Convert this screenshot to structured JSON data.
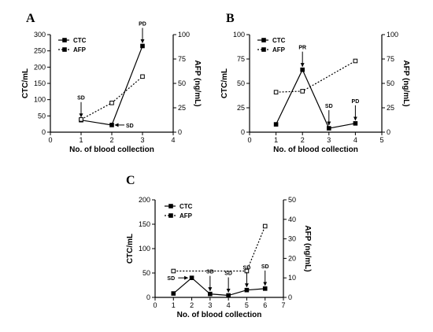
{
  "chart_data": [
    {
      "panel": "A",
      "type": "line",
      "xlabel": "No. of blood collection",
      "ylabel": "CTC/mL",
      "y2label": "AFP (ng/mL)",
      "xlim": [
        0,
        4
      ],
      "ylim": [
        0,
        300
      ],
      "y2lim": [
        0,
        100
      ],
      "xticks": [
        "0",
        "1",
        "2",
        "3",
        "4"
      ],
      "yticks": [
        "0",
        "50",
        "100",
        "150",
        "200",
        "250",
        "300"
      ],
      "y2ticks": [
        "0",
        "25",
        "50",
        "75",
        "100"
      ],
      "legend": {
        "position": "top-left",
        "entries": [
          "CTC",
          "AFP"
        ]
      },
      "series": [
        {
          "name": "CTC",
          "axis": "left",
          "style": "solid",
          "marker": "square",
          "x": [
            1,
            2,
            3
          ],
          "y": [
            37,
            22,
            265
          ]
        },
        {
          "name": "AFP",
          "axis": "right",
          "style": "dotted",
          "marker": "square-open",
          "x": [
            1,
            2,
            3
          ],
          "y": [
            13,
            30,
            57
          ]
        }
      ],
      "annotations": [
        {
          "text": "SD",
          "x": 1,
          "y": 37,
          "arrow": "down"
        },
        {
          "text": "SD",
          "x": 2,
          "y": 22,
          "arrow": "left"
        },
        {
          "text": "PD",
          "x": 3,
          "y": 265,
          "arrow": "down"
        }
      ]
    },
    {
      "panel": "B",
      "type": "line",
      "xlabel": "No. of blood collection",
      "ylabel": "CTC/mL",
      "y2label": "AFP (ng/mL)",
      "xlim": [
        0,
        5
      ],
      "ylim": [
        0,
        100
      ],
      "y2lim": [
        0,
        100
      ],
      "xticks": [
        "0",
        "1",
        "2",
        "3",
        "4",
        "5"
      ],
      "yticks": [
        "0",
        "25",
        "50",
        "75",
        "100"
      ],
      "y2ticks": [
        "0",
        "25",
        "50",
        "75",
        "100"
      ],
      "legend": {
        "position": "top-left",
        "entries": [
          "CTC",
          "AFP"
        ]
      },
      "series": [
        {
          "name": "CTC",
          "axis": "left",
          "style": "solid",
          "marker": "square",
          "x": [
            1,
            2,
            3,
            4
          ],
          "y": [
            8,
            64,
            4,
            9
          ]
        },
        {
          "name": "AFP",
          "axis": "right",
          "style": "dotted",
          "marker": "square-open",
          "x": [
            1,
            2,
            3,
            4
          ],
          "y": [
            41,
            42,
            null,
            73
          ]
        }
      ],
      "annotations": [
        {
          "text": "PR",
          "x": 2,
          "y": 64,
          "arrow": "down"
        },
        {
          "text": "SD",
          "x": 3,
          "y": 4,
          "arrow": "down"
        },
        {
          "text": "PD",
          "x": 4,
          "y": 9,
          "arrow": "down"
        }
      ]
    },
    {
      "panel": "C",
      "type": "line",
      "xlabel": "No. of blood collection",
      "ylabel": "CTC/mL",
      "y2label": "AFP (ng/mL)",
      "xlim": [
        0,
        7
      ],
      "ylim": [
        0,
        200
      ],
      "y2lim": [
        0,
        50
      ],
      "xticks": [
        "0",
        "1",
        "2",
        "3",
        "4",
        "5",
        "6",
        "7"
      ],
      "yticks": [
        "0",
        "50",
        "100",
        "150",
        "200"
      ],
      "y2ticks": [
        "0",
        "10",
        "20",
        "30",
        "40",
        "50"
      ],
      "legend": {
        "position": "top-left",
        "entries": [
          "CTC",
          "AFP"
        ]
      },
      "series": [
        {
          "name": "CTC",
          "axis": "left",
          "style": "solid",
          "marker": "square",
          "x": [
            1,
            2,
            3,
            4,
            5,
            6
          ],
          "y": [
            8,
            40,
            7,
            4,
            15,
            18
          ]
        },
        {
          "name": "AFP",
          "axis": "right",
          "style": "dotted",
          "marker": "square-open",
          "x": [
            1,
            5,
            6
          ],
          "y": [
            13.5,
            13.5,
            36.5
          ]
        }
      ],
      "annotations": [
        {
          "text": "SD",
          "x": 1,
          "y": 40,
          "arrow": "right"
        },
        {
          "text": "SD",
          "x": 3,
          "y": 7,
          "arrow": "down"
        },
        {
          "text": "SD",
          "x": 4,
          "y": 4,
          "arrow": "down"
        },
        {
          "text": "SD",
          "x": 5,
          "y": 15,
          "arrow": "down"
        },
        {
          "text": "SD",
          "x": 6,
          "y": 18,
          "arrow": "down"
        }
      ]
    }
  ]
}
